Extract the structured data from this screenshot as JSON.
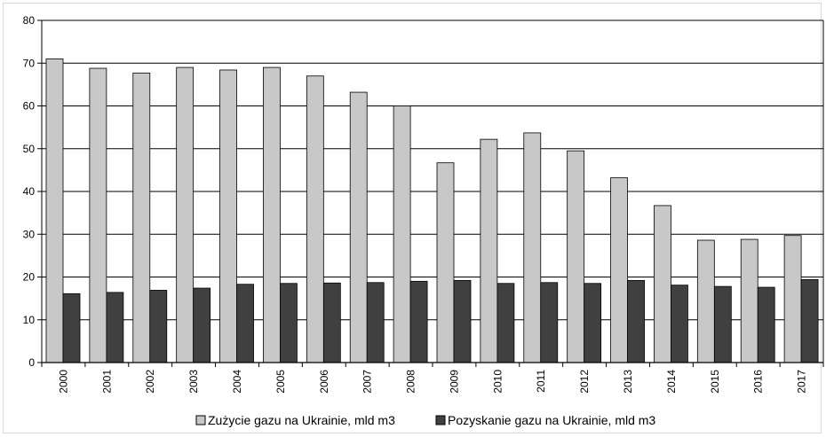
{
  "chart_data": {
    "type": "bar",
    "categories": [
      "2000",
      "2001",
      "2002",
      "2003",
      "2004",
      "2005",
      "2006",
      "2007",
      "2008",
      "2009",
      "2010",
      "2011",
      "2012",
      "2013",
      "2014",
      "2015",
      "2016",
      "2017"
    ],
    "series": [
      {
        "name": "Zużycie gazu na Ukrainie, mld m3",
        "color": "#c8c8c8",
        "values": [
          71.0,
          68.8,
          67.7,
          69.0,
          68.4,
          69.0,
          67.0,
          63.2,
          60.0,
          46.7,
          52.2,
          53.7,
          49.5,
          43.2,
          36.7,
          28.6,
          28.8,
          29.7
        ]
      },
      {
        "name": "Pozyskanie gazu na Ukrainie, mld m3",
        "color": "#404040",
        "values": [
          16.1,
          16.4,
          16.9,
          17.4,
          18.3,
          18.5,
          18.6,
          18.7,
          19.0,
          19.2,
          18.5,
          18.7,
          18.5,
          19.2,
          18.1,
          17.8,
          17.6,
          19.4
        ]
      }
    ],
    "yticks": [
      "0",
      "10",
      "20",
      "30",
      "40",
      "50",
      "60",
      "70",
      "80"
    ],
    "ylim": [
      0,
      80
    ],
    "grid": true,
    "legend_position": "bottom"
  }
}
